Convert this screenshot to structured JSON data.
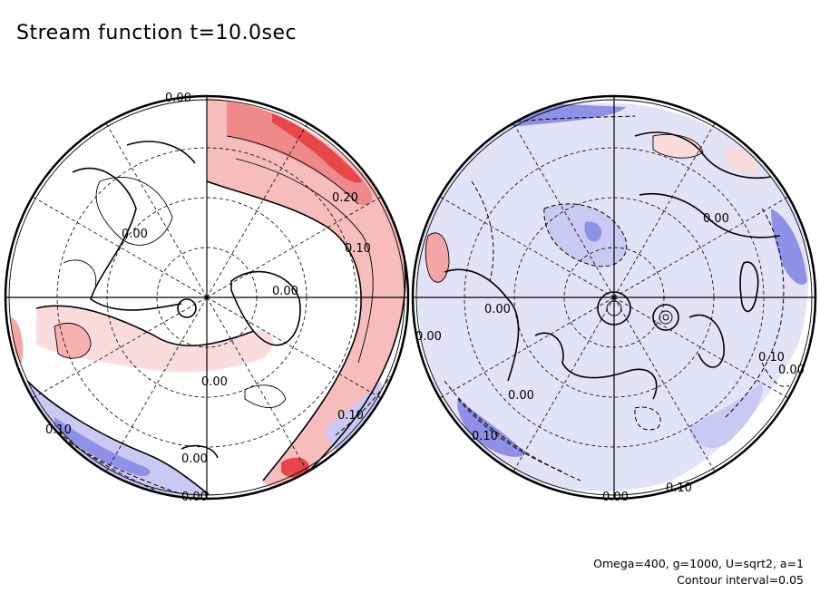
{
  "chart_data": {
    "type": "contour",
    "title": "Stream function t=10.0sec",
    "projection": "orthographic, two hemispheres",
    "contour_interval": 0.05,
    "fill_colors": {
      "positive": "#e8474a",
      "negative": "#6d6fe0",
      "zero_band": "#ffffff"
    },
    "hemispheres": [
      {
        "name": "left",
        "contour_labels": [
          "0.00",
          "0.00",
          "0.00",
          "0.00",
          "0.20",
          "0.10",
          "0.10",
          "0.10",
          "0.00",
          "0.00"
        ]
      },
      {
        "name": "right",
        "contour_labels": [
          "0.00",
          "0.00",
          "0.00",
          "0.00",
          "0.10",
          "0.00",
          "0.10",
          "0.00",
          "0.10"
        ]
      }
    ],
    "annotations": [
      "Omega=400, g=1000, U=sqrt2, a=1",
      "Contour interval=0.05"
    ]
  }
}
